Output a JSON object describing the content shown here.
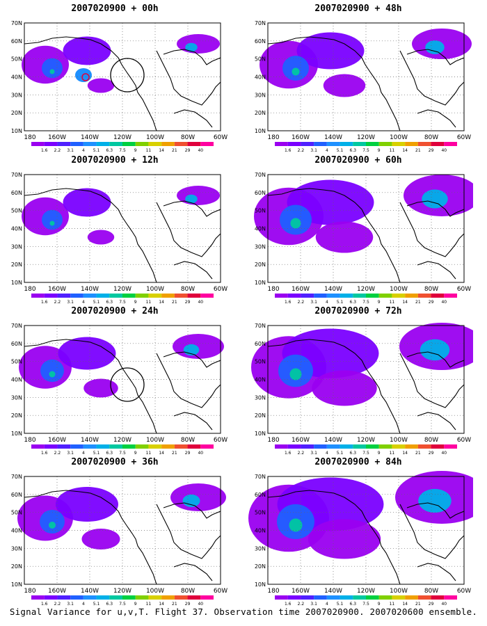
{
  "panels": [
    {
      "title": "2007020900 + 00h",
      "intensity": 0.35,
      "circle": "east-pacific"
    },
    {
      "title": "2007020900 + 48h",
      "intensity": 0.55,
      "circle": null
    },
    {
      "title": "2007020900 + 12h",
      "intensity": 0.35,
      "circle": null
    },
    {
      "title": "2007020900 + 60h",
      "intensity": 0.75,
      "circle": null
    },
    {
      "title": "2007020900 + 24h",
      "intensity": 0.45,
      "circle": "west-coast"
    },
    {
      "title": "2007020900 + 72h",
      "intensity": 0.85,
      "circle": null
    },
    {
      "title": "2007020900 + 36h",
      "intensity": 0.5,
      "circle": null
    },
    {
      "title": "2007020900 + 84h",
      "intensity": 0.95,
      "circle": null
    }
  ],
  "map": {
    "lat_labels": [
      "70N",
      "60N",
      "50N",
      "40N",
      "30N",
      "20N",
      "10N"
    ],
    "lon_labels": [
      "180",
      "160W",
      "140W",
      "120W",
      "100W",
      "80W",
      "60W"
    ]
  },
  "colorbar": {
    "labels": [
      "1.6",
      "2.2",
      "3.1",
      "4",
      "5.1",
      "6.3",
      "7.5",
      "9",
      "11",
      "14",
      "21",
      "29",
      "40"
    ],
    "colors": [
      "#9a00f0",
      "#7a00ff",
      "#5020ff",
      "#2060ff",
      "#1e90ff",
      "#00b0e8",
      "#00c8a0",
      "#00d040",
      "#80d000",
      "#d8d000",
      "#f0a000",
      "#f05030",
      "#e0003c",
      "#ff00a0"
    ]
  },
  "footer": "Signal Variance for u,v,T. Flight 37. Observation time 2007020900. 2007020600 ensemble."
}
